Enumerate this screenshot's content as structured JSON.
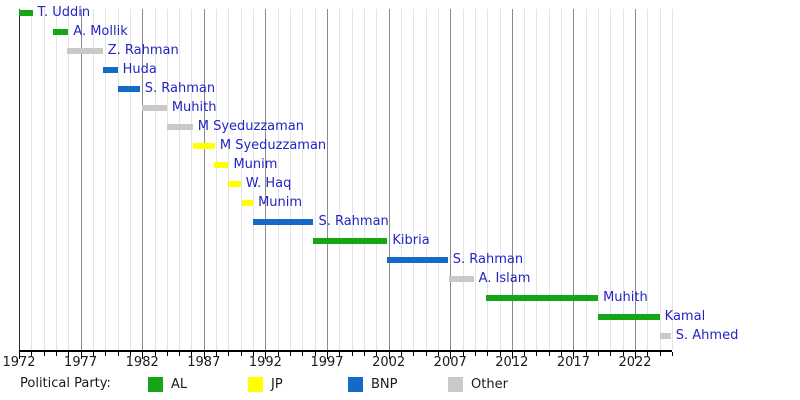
{
  "chart_data": {
    "type": "timeline",
    "title": "",
    "description": "Gantt-style timeline of finance ministers' terms colored by political party",
    "xlim": [
      1972,
      2025
    ],
    "x_tick_years": [
      1972,
      1977,
      1982,
      1987,
      1992,
      1997,
      2002,
      2007,
      2012,
      2017,
      2022
    ],
    "minor_tick_interval_years": 1,
    "grid": true,
    "legend_position": "bottom",
    "entries": [
      {
        "label": "T. Uddin",
        "party": "AL",
        "start": 1972.0,
        "end": 1973.1
      },
      {
        "label": "A. Mollik",
        "party": "AL",
        "start": 1974.8,
        "end": 1976.0
      },
      {
        "label": "Z. Rahman",
        "party": "Other",
        "start": 1975.9,
        "end": 1978.8
      },
      {
        "label": "Huda",
        "party": "BNP",
        "start": 1978.8,
        "end": 1980.0
      },
      {
        "label": "S. Rahman",
        "party": "BNP",
        "start": 1980.0,
        "end": 1981.8
      },
      {
        "label": "Muhith",
        "party": "Other",
        "start": 1982.0,
        "end": 1984.0
      },
      {
        "label": "M Syeduzzaman",
        "party": "Other",
        "start": 1984.0,
        "end": 1986.1
      },
      {
        "label": "M Syeduzzaman",
        "party": "JP",
        "start": 1986.1,
        "end": 1987.9
      },
      {
        "label": "Munim",
        "party": "JP",
        "start": 1987.8,
        "end": 1989.0
      },
      {
        "label": "W. Haq",
        "party": "JP",
        "start": 1989.0,
        "end": 1990.0
      },
      {
        "label": "Munim",
        "party": "JP",
        "start": 1990.1,
        "end": 1991.0
      },
      {
        "label": "S. Rahman",
        "party": "BNP",
        "start": 1991.0,
        "end": 1995.9
      },
      {
        "label": "Kibria",
        "party": "AL",
        "start": 1995.9,
        "end": 2001.9
      },
      {
        "label": "S. Rahman",
        "party": "BNP",
        "start": 2001.9,
        "end": 2006.8
      },
      {
        "label": "A. Islam",
        "party": "Other",
        "start": 2006.9,
        "end": 2008.9
      },
      {
        "label": "Muhith",
        "party": "AL",
        "start": 2009.9,
        "end": 2019.0
      },
      {
        "label": "Kamal",
        "party": "AL",
        "start": 2019.0,
        "end": 2024.0
      },
      {
        "label": "S. Ahmed",
        "party": "Other",
        "start": 2024.0,
        "end": 2024.9
      }
    ],
    "legend": {
      "label": "Political Party:",
      "items": [
        {
          "label": "AL",
          "color": "#16a516"
        },
        {
          "label": "JP",
          "color": "#ffff00"
        },
        {
          "label": "BNP",
          "color": "#1569c7"
        },
        {
          "label": "Other",
          "color": "#c9c9c9"
        }
      ]
    }
  },
  "colors": {
    "bar_label_text": "#2424c4",
    "axis_text": "#1a1a1a",
    "grid_minor": "#e4e4e4",
    "grid_major": "#8a8a8a",
    "axis_line": "#000000",
    "background": "#ffffff"
  }
}
